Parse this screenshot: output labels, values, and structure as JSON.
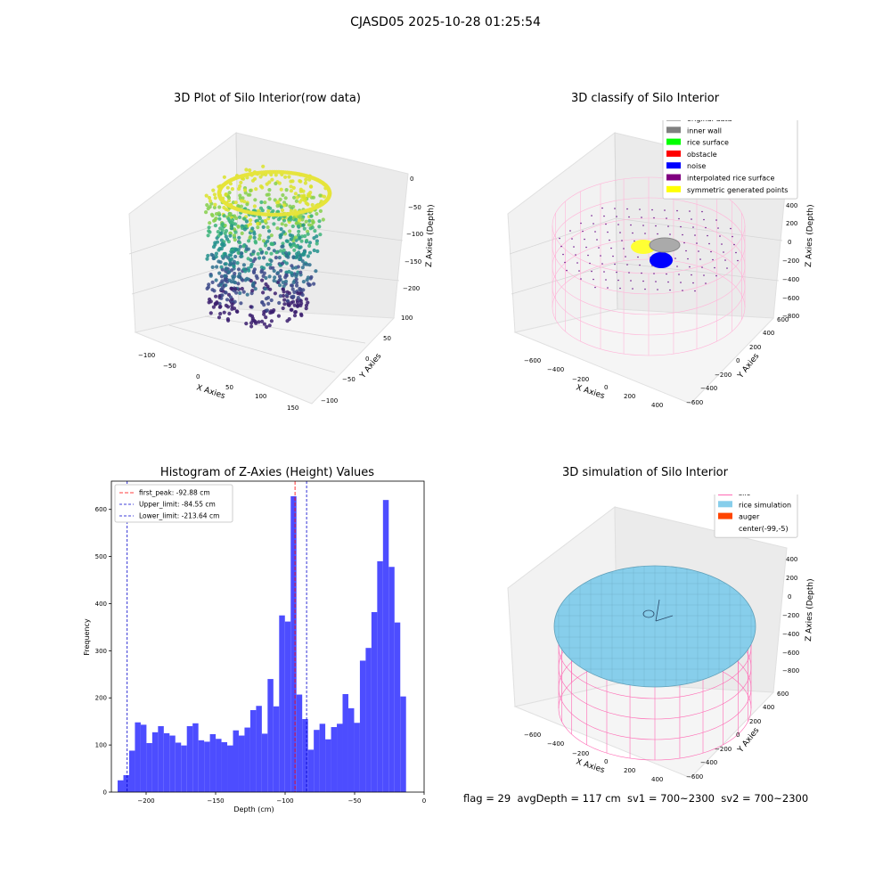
{
  "figure_title": "CJASD05 2025-10-28 01:25:54",
  "status_line": "flag = 29  avgDepth = 117 cm  sv1 = 700~2300  sv2 = 700~2300",
  "panels": {
    "raw": {
      "title": "3D Plot of Silo Interior(row data)",
      "xlabel": "X Axies",
      "ylabel": "Y Axies",
      "zlabel": "Z Axies (Depth)",
      "xticks": [
        "−100",
        "−50",
        "0",
        "50",
        "100",
        "150"
      ],
      "yticks": [
        "100",
        "50",
        "0",
        "−50",
        "−100"
      ],
      "zticks": [
        "0",
        "−50",
        "−100",
        "−150",
        "−200"
      ]
    },
    "classify": {
      "title": "3D classify of Silo Interior",
      "xlabel": "X Axies",
      "ylabel": "Y Axies",
      "zlabel": "Z Axies (Depth)",
      "xticks": [
        "−600",
        "−400",
        "−200",
        "0",
        "200",
        "400"
      ],
      "yticks": [
        "600",
        "400",
        "200",
        "0",
        "−200",
        "−400",
        "−600"
      ],
      "zticks": [
        "400",
        "200",
        "0",
        "−200",
        "−400",
        "−600",
        "−800"
      ],
      "legend": [
        {
          "label": "original data",
          "color": "#b3b3b3"
        },
        {
          "label": "inner wall",
          "color": "#808080"
        },
        {
          "label": "rice surface",
          "color": "#00ff00"
        },
        {
          "label": "obstacle",
          "color": "#ff0000"
        },
        {
          "label": "noise",
          "color": "#0000ff"
        },
        {
          "label": "interpolated rice surface",
          "color": "#800080"
        },
        {
          "label": "symmetric generated points",
          "color": "#ffff00"
        }
      ]
    },
    "simulation": {
      "title": "3D simulation of Silo Interior",
      "xlabel": "X Axies",
      "ylabel": "Y Axies",
      "zlabel": "Z Axies (Depth)",
      "xticks": [
        "−600",
        "−400",
        "−200",
        "0",
        "200",
        "400"
      ],
      "yticks": [
        "600",
        "400",
        "200",
        "0",
        "−200",
        "−400",
        "−600"
      ],
      "zticks": [
        "400",
        "200",
        "0",
        "−200",
        "−400",
        "−600",
        "−800"
      ],
      "legend": [
        {
          "label": "silo",
          "color": "#ff69b4"
        },
        {
          "label": "rice simulation",
          "color": "#87ceeb"
        },
        {
          "label": "auger",
          "color": "#ff4500"
        },
        {
          "label": "center(-99,-5)",
          "color": "#ffffff"
        }
      ]
    }
  },
  "chart_data": {
    "type": "bar",
    "title": "Histogram of Z-Axies (Height) Values",
    "xlabel": "Depth (cm)",
    "ylabel": "Frequency",
    "xlim": [
      -225,
      0
    ],
    "ylim": [
      0,
      660
    ],
    "xticks": [
      -200,
      -150,
      -100,
      -50,
      0
    ],
    "yticks": [
      0,
      100,
      200,
      300,
      400,
      500,
      600
    ],
    "bin_start": -220.5,
    "bin_width": 4.15,
    "bar_color": "#4d4dff",
    "values": [
      25,
      36,
      88,
      148,
      143,
      104,
      127,
      140,
      125,
      120,
      105,
      99,
      140,
      146,
      110,
      107,
      123,
      113,
      106,
      99,
      131,
      120,
      137,
      174,
      183,
      124,
      240,
      182,
      375,
      362,
      628,
      207,
      155,
      90,
      132,
      145,
      112,
      138,
      145,
      208,
      178,
      147,
      279,
      306,
      382,
      490,
      620,
      478,
      360,
      203
    ],
    "vlines": [
      {
        "label": "first_peak: -92.88 cm",
        "x": -92.88,
        "color": "#ff0000"
      },
      {
        "label": "Upper_limit: -84.55 cm",
        "x": -84.55,
        "color": "#0000cc"
      },
      {
        "label": "Lower_limit: -213.64 cm",
        "x": -213.64,
        "color": "#0000cc"
      }
    ]
  }
}
